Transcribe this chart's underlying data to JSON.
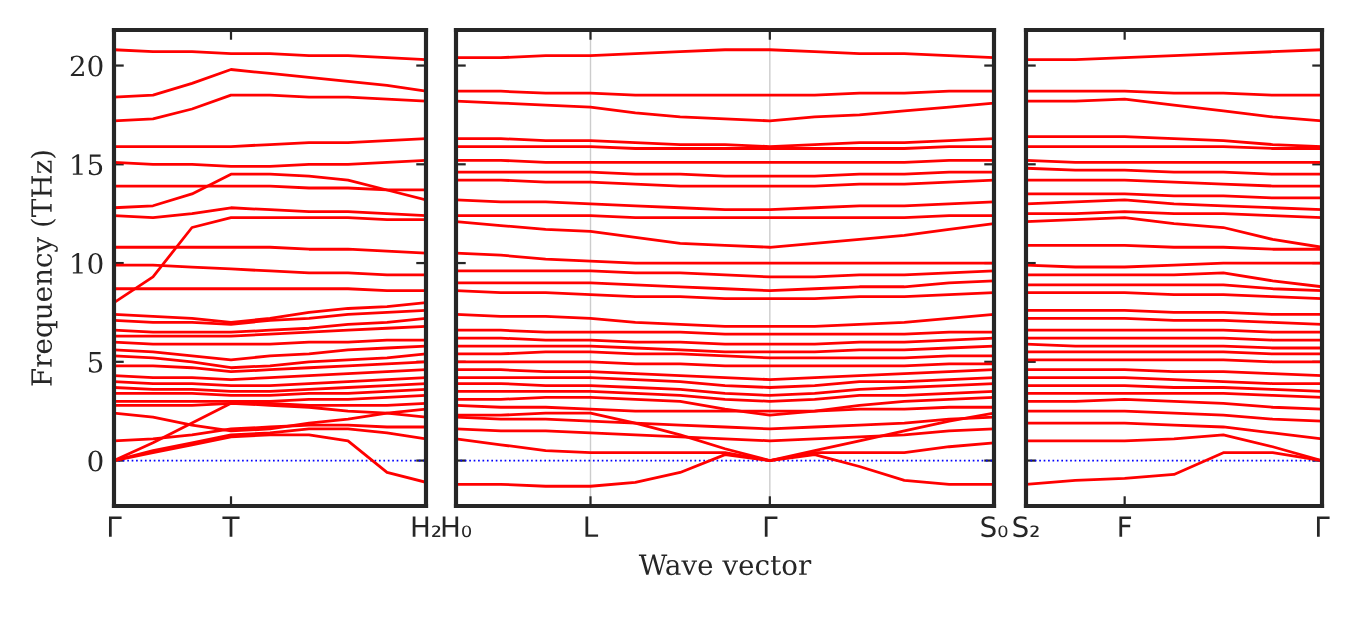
{
  "chart_data": [
    {
      "type": "line",
      "ylabel": "Frequency (THz)",
      "color": "#ff0000",
      "ylim": [
        -2.3,
        21.8
      ],
      "yticks": [
        0,
        5,
        10,
        15,
        20
      ],
      "line_style": "solid",
      "ref_lines": [
        {
          "axis": "y",
          "value": 0,
          "color": "#0000ff",
          "line_style": "dotted"
        }
      ],
      "categories": [
        "Γ",
        null,
        null,
        "T",
        null,
        null,
        null,
        null,
        "H₂"
      ],
      "series": [
        {
          "values": [
            20.8,
            20.7,
            20.7,
            20.6,
            20.6,
            20.5,
            20.5,
            20.4,
            20.3
          ]
        },
        {
          "values": [
            18.4,
            18.5,
            19.1,
            19.8,
            19.6,
            19.4,
            19.2,
            19.0,
            18.7
          ]
        },
        {
          "values": [
            17.2,
            17.3,
            17.8,
            18.5,
            18.5,
            18.4,
            18.4,
            18.3,
            18.2
          ]
        },
        {
          "values": [
            15.9,
            15.9,
            15.9,
            15.9,
            16.0,
            16.1,
            16.1,
            16.2,
            16.3
          ]
        },
        {
          "values": [
            15.1,
            15.0,
            15.0,
            14.9,
            14.9,
            15.0,
            15.0,
            15.1,
            15.2
          ]
        },
        {
          "values": [
            12.8,
            12.9,
            13.5,
            14.5,
            14.5,
            14.4,
            14.2,
            13.7,
            13.2
          ]
        },
        {
          "values": [
            13.9,
            13.9,
            13.9,
            13.9,
            13.9,
            13.8,
            13.8,
            13.7,
            13.7
          ]
        },
        {
          "values": [
            12.4,
            12.3,
            12.5,
            12.8,
            12.7,
            12.6,
            12.6,
            12.5,
            12.4
          ]
        },
        {
          "values": [
            8.0,
            9.3,
            11.8,
            12.3,
            12.3,
            12.3,
            12.3,
            12.2,
            12.2
          ]
        },
        {
          "values": [
            10.8,
            10.8,
            10.8,
            10.8,
            10.8,
            10.7,
            10.7,
            10.6,
            10.5
          ]
        },
        {
          "values": [
            9.9,
            9.9,
            9.8,
            9.7,
            9.6,
            9.5,
            9.5,
            9.4,
            9.4
          ]
        },
        {
          "values": [
            8.7,
            8.7,
            8.7,
            8.7,
            8.7,
            8.7,
            8.7,
            8.6,
            8.6
          ]
        },
        {
          "values": [
            7.4,
            7.3,
            7.2,
            7.0,
            7.2,
            7.5,
            7.7,
            7.8,
            8.0
          ]
        },
        {
          "values": [
            7.1,
            7.0,
            7.0,
            6.9,
            7.1,
            7.2,
            7.4,
            7.5,
            7.6
          ]
        },
        {
          "values": [
            6.6,
            6.5,
            6.5,
            6.5,
            6.6,
            6.7,
            6.9,
            7.0,
            7.2
          ]
        },
        {
          "values": [
            6.3,
            6.3,
            6.3,
            6.3,
            6.4,
            6.5,
            6.6,
            6.7,
            6.8
          ]
        },
        {
          "values": [
            6.0,
            5.9,
            5.9,
            5.9,
            5.9,
            6.0,
            6.0,
            6.1,
            6.1
          ]
        },
        {
          "values": [
            5.6,
            5.5,
            5.3,
            5.1,
            5.3,
            5.4,
            5.6,
            5.7,
            5.8
          ]
        },
        {
          "values": [
            5.3,
            5.2,
            5.0,
            4.7,
            4.8,
            5.0,
            5.1,
            5.2,
            5.4
          ]
        },
        {
          "values": [
            4.8,
            4.8,
            4.7,
            4.5,
            4.6,
            4.7,
            4.8,
            4.9,
            5.0
          ]
        },
        {
          "values": [
            4.3,
            4.2,
            4.2,
            4.1,
            4.2,
            4.3,
            4.4,
            4.5,
            4.6
          ]
        },
        {
          "values": [
            4.0,
            3.9,
            3.9,
            3.8,
            3.8,
            3.9,
            4.0,
            4.1,
            4.2
          ]
        },
        {
          "values": [
            3.7,
            3.6,
            3.6,
            3.5,
            3.5,
            3.6,
            3.7,
            3.8,
            3.9
          ]
        },
        {
          "values": [
            3.4,
            3.4,
            3.4,
            3.3,
            3.3,
            3.4,
            3.4,
            3.5,
            3.6
          ]
        },
        {
          "values": [
            3.0,
            3.0,
            3.0,
            3.0,
            3.0,
            3.1,
            3.1,
            3.2,
            3.3
          ]
        },
        {
          "values": [
            2.8,
            2.8,
            2.8,
            2.9,
            2.9,
            2.8,
            2.8,
            2.8,
            2.9
          ]
        },
        {
          "values": [
            2.4,
            2.2,
            1.8,
            1.5,
            1.6,
            1.9,
            2.1,
            2.4,
            2.6
          ]
        },
        {
          "values": [
            0.0,
            0.9,
            1.9,
            2.9,
            2.8,
            2.7,
            2.5,
            2.4,
            2.2
          ]
        },
        {
          "values": [
            1.0,
            1.1,
            1.3,
            1.6,
            1.7,
            1.8,
            1.8,
            1.7,
            1.7
          ]
        },
        {
          "values": [
            0.0,
            0.5,
            0.9,
            1.3,
            1.4,
            1.6,
            1.6,
            1.4,
            1.1
          ]
        },
        {
          "values": [
            0.0,
            0.4,
            0.8,
            1.2,
            1.3,
            1.3,
            1.0,
            -0.6,
            -1.1
          ]
        }
      ]
    },
    {
      "type": "line",
      "xlabel": "Wave vector",
      "color": "#ff0000",
      "ylim": [
        -2.3,
        21.8
      ],
      "yticks": [
        0,
        5,
        10,
        15,
        20
      ],
      "grid": "x",
      "line_style": "solid",
      "ref_lines": [
        {
          "axis": "y",
          "value": 0,
          "color": "#0000ff",
          "line_style": "dotted"
        }
      ],
      "categories": [
        "H₀",
        null,
        null,
        "L",
        null,
        null,
        null,
        "Γ",
        null,
        null,
        null,
        null,
        "S₀"
      ],
      "series": [
        {
          "values": [
            20.4,
            20.4,
            20.5,
            20.5,
            20.6,
            20.7,
            20.8,
            20.8,
            20.7,
            20.6,
            20.6,
            20.5,
            20.4
          ]
        },
        {
          "values": [
            18.7,
            18.7,
            18.6,
            18.6,
            18.5,
            18.5,
            18.5,
            18.5,
            18.5,
            18.6,
            18.6,
            18.7,
            18.7
          ]
        },
        {
          "values": [
            18.2,
            18.1,
            18.0,
            17.9,
            17.6,
            17.4,
            17.3,
            17.2,
            17.4,
            17.5,
            17.7,
            17.9,
            18.1
          ]
        },
        {
          "values": [
            16.3,
            16.3,
            16.2,
            16.2,
            16.1,
            16.0,
            16.0,
            15.9,
            16.0,
            16.1,
            16.1,
            16.2,
            16.3
          ]
        },
        {
          "values": [
            15.9,
            15.9,
            15.9,
            15.9,
            15.8,
            15.8,
            15.8,
            15.8,
            15.8,
            15.8,
            15.8,
            15.9,
            15.9
          ]
        },
        {
          "values": [
            15.2,
            15.2,
            15.1,
            15.1,
            15.1,
            15.1,
            15.1,
            15.1,
            15.1,
            15.1,
            15.1,
            15.2,
            15.2
          ]
        },
        {
          "values": [
            14.6,
            14.6,
            14.6,
            14.6,
            14.5,
            14.5,
            14.4,
            14.4,
            14.4,
            14.5,
            14.5,
            14.6,
            14.6
          ]
        },
        {
          "values": [
            14.2,
            14.2,
            14.1,
            14.1,
            14.0,
            13.9,
            13.9,
            13.9,
            13.9,
            14.0,
            14.0,
            14.1,
            14.2
          ]
        },
        {
          "values": [
            13.2,
            13.1,
            13.1,
            13.0,
            12.9,
            12.8,
            12.7,
            12.7,
            12.8,
            12.9,
            12.9,
            13.0,
            13.1
          ]
        },
        {
          "values": [
            12.4,
            12.4,
            12.4,
            12.4,
            12.3,
            12.3,
            12.3,
            12.3,
            12.3,
            12.3,
            12.3,
            12.4,
            12.4
          ]
        },
        {
          "values": [
            12.1,
            11.9,
            11.7,
            11.6,
            11.3,
            11.0,
            10.9,
            10.8,
            11.0,
            11.2,
            11.4,
            11.7,
            12.0
          ]
        },
        {
          "values": [
            10.5,
            10.4,
            10.2,
            10.1,
            10.0,
            10.0,
            10.0,
            10.0,
            10.0,
            10.0,
            10.0,
            10.0,
            10.0
          ]
        },
        {
          "values": [
            9.6,
            9.6,
            9.6,
            9.6,
            9.5,
            9.5,
            9.4,
            9.3,
            9.3,
            9.4,
            9.4,
            9.5,
            9.6
          ]
        },
        {
          "values": [
            9.0,
            9.0,
            9.0,
            9.0,
            8.9,
            8.8,
            8.7,
            8.6,
            8.7,
            8.8,
            8.8,
            9.0,
            9.1
          ]
        },
        {
          "values": [
            8.6,
            8.5,
            8.5,
            8.4,
            8.3,
            8.3,
            8.2,
            8.2,
            8.2,
            8.3,
            8.3,
            8.4,
            8.5
          ]
        },
        {
          "values": [
            7.4,
            7.3,
            7.3,
            7.2,
            7.0,
            6.9,
            6.8,
            6.8,
            6.8,
            6.9,
            7.0,
            7.2,
            7.4
          ]
        },
        {
          "values": [
            6.6,
            6.6,
            6.5,
            6.5,
            6.5,
            6.5,
            6.4,
            6.4,
            6.4,
            6.4,
            6.4,
            6.5,
            6.5
          ]
        },
        {
          "values": [
            6.2,
            6.2,
            6.1,
            6.1,
            6.0,
            6.0,
            5.9,
            5.9,
            5.9,
            6.0,
            6.0,
            6.1,
            6.2
          ]
        },
        {
          "values": [
            5.8,
            5.8,
            5.8,
            5.8,
            5.7,
            5.6,
            5.5,
            5.5,
            5.5,
            5.6,
            5.6,
            5.7,
            5.8
          ]
        },
        {
          "values": [
            5.4,
            5.4,
            5.5,
            5.5,
            5.4,
            5.4,
            5.3,
            5.2,
            5.2,
            5.2,
            5.2,
            5.3,
            5.3
          ]
        },
        {
          "values": [
            5.0,
            5.0,
            5.0,
            5.0,
            4.9,
            4.9,
            4.8,
            4.8,
            4.8,
            4.8,
            4.8,
            4.9,
            4.9
          ]
        },
        {
          "values": [
            4.6,
            4.6,
            4.5,
            4.5,
            4.4,
            4.3,
            4.2,
            4.1,
            4.2,
            4.3,
            4.4,
            4.5,
            4.6
          ]
        },
        {
          "values": [
            4.2,
            4.2,
            4.2,
            4.2,
            4.1,
            4.0,
            3.8,
            3.7,
            3.8,
            4.0,
            4.0,
            4.1,
            4.2
          ]
        },
        {
          "values": [
            3.9,
            3.9,
            3.8,
            3.8,
            3.7,
            3.6,
            3.4,
            3.3,
            3.4,
            3.6,
            3.7,
            3.8,
            3.9
          ]
        },
        {
          "values": [
            3.5,
            3.5,
            3.5,
            3.5,
            3.4,
            3.3,
            3.1,
            3.0,
            3.1,
            3.3,
            3.3,
            3.4,
            3.5
          ]
        },
        {
          "values": [
            3.1,
            3.1,
            3.2,
            3.2,
            3.1,
            3.0,
            2.6,
            2.3,
            2.5,
            2.8,
            3.0,
            3.1,
            3.2
          ]
        },
        {
          "values": [
            2.8,
            2.7,
            2.7,
            2.6,
            2.5,
            2.5,
            2.5,
            2.5,
            2.5,
            2.6,
            2.6,
            2.7,
            2.7
          ]
        },
        {
          "values": [
            2.2,
            2.1,
            2.1,
            2.0,
            1.9,
            1.8,
            1.7,
            1.6,
            1.7,
            1.8,
            1.9,
            2.1,
            2.2
          ]
        },
        {
          "values": [
            1.6,
            1.5,
            1.5,
            1.4,
            1.3,
            1.2,
            1.1,
            1.0,
            1.1,
            1.2,
            1.3,
            1.5,
            1.6
          ]
        },
        {
          "values": [
            2.3,
            2.3,
            2.4,
            2.4,
            1.9,
            1.3,
            0.6,
            0.0,
            0.4,
            0.4,
            0.4,
            0.7,
            0.9
          ]
        },
        {
          "values": [
            1.1,
            0.8,
            0.5,
            0.4,
            0.4,
            0.4,
            0.4,
            0.0,
            0.5,
            1.0,
            1.5,
            2.0,
            2.4
          ]
        },
        {
          "values": [
            -1.2,
            -1.2,
            -1.3,
            -1.3,
            -1.1,
            -0.6,
            0.3,
            0.0,
            0.3,
            -0.3,
            -1.0,
            -1.2,
            -1.2
          ]
        }
      ],
      "tick_labels": "x"
    },
    {
      "type": "line",
      "color": "#ff0000",
      "ylim": [
        -2.3,
        21.8
      ],
      "yticks": [
        0,
        5,
        10,
        15,
        20
      ],
      "line_style": "solid",
      "ref_lines": [
        {
          "axis": "y",
          "value": 0,
          "color": "#0000ff",
          "line_style": "dotted"
        }
      ],
      "categories": [
        "S₂",
        null,
        "F",
        null,
        null,
        null,
        "Γ"
      ],
      "series": [
        {
          "values": [
            20.3,
            20.3,
            20.4,
            20.5,
            20.6,
            20.7,
            20.8
          ]
        },
        {
          "values": [
            18.7,
            18.7,
            18.7,
            18.6,
            18.6,
            18.5,
            18.5
          ]
        },
        {
          "values": [
            18.2,
            18.2,
            18.3,
            18.0,
            17.7,
            17.4,
            17.2
          ]
        },
        {
          "values": [
            16.4,
            16.4,
            16.4,
            16.3,
            16.2,
            16.0,
            15.9
          ]
        },
        {
          "values": [
            15.9,
            15.9,
            15.9,
            15.9,
            15.9,
            15.8,
            15.8
          ]
        },
        {
          "values": [
            15.2,
            15.1,
            15.1,
            15.1,
            15.1,
            15.1,
            15.1
          ]
        },
        {
          "values": [
            14.8,
            14.7,
            14.7,
            14.6,
            14.6,
            14.5,
            14.5
          ]
        },
        {
          "values": [
            14.2,
            14.2,
            14.2,
            14.1,
            14.0,
            13.9,
            13.9
          ]
        },
        {
          "values": [
            13.5,
            13.5,
            13.5,
            13.4,
            13.4,
            13.3,
            13.3
          ]
        },
        {
          "values": [
            13.0,
            13.1,
            13.2,
            13.0,
            12.9,
            12.8,
            12.7
          ]
        },
        {
          "values": [
            12.5,
            12.5,
            12.6,
            12.5,
            12.5,
            12.4,
            12.3
          ]
        },
        {
          "values": [
            12.1,
            12.2,
            12.3,
            12.0,
            11.8,
            11.2,
            10.8
          ]
        },
        {
          "values": [
            10.9,
            10.9,
            10.9,
            10.8,
            10.8,
            10.7,
            10.7
          ]
        },
        {
          "values": [
            9.9,
            9.8,
            9.8,
            9.9,
            10.0,
            10.0,
            10.0
          ]
        },
        {
          "values": [
            9.4,
            9.4,
            9.4,
            9.4,
            9.5,
            9.1,
            8.8
          ]
        },
        {
          "values": [
            8.9,
            8.9,
            8.9,
            8.9,
            8.9,
            8.7,
            8.6
          ]
        },
        {
          "values": [
            8.5,
            8.5,
            8.5,
            8.4,
            8.4,
            8.3,
            8.2
          ]
        },
        {
          "values": [
            7.6,
            7.6,
            7.6,
            7.5,
            7.5,
            7.4,
            7.4
          ]
        },
        {
          "values": [
            7.2,
            7.2,
            7.2,
            7.1,
            7.1,
            7.0,
            6.9
          ]
        },
        {
          "values": [
            6.6,
            6.6,
            6.6,
            6.6,
            6.6,
            6.5,
            6.5
          ]
        },
        {
          "values": [
            6.2,
            6.2,
            6.2,
            6.2,
            6.2,
            6.1,
            6.1
          ]
        },
        {
          "values": [
            5.9,
            5.8,
            5.8,
            5.8,
            5.8,
            5.7,
            5.7
          ]
        },
        {
          "values": [
            5.5,
            5.5,
            5.5,
            5.5,
            5.5,
            5.4,
            5.4
          ]
        },
        {
          "values": [
            5.1,
            5.1,
            5.1,
            5.1,
            5.1,
            5.0,
            5.0
          ]
        },
        {
          "values": [
            4.6,
            4.6,
            4.6,
            4.5,
            4.5,
            4.4,
            4.3
          ]
        },
        {
          "values": [
            4.2,
            4.2,
            4.2,
            4.1,
            4.0,
            3.9,
            3.9
          ]
        },
        {
          "values": [
            3.8,
            3.8,
            3.8,
            3.7,
            3.7,
            3.6,
            3.5
          ]
        },
        {
          "values": [
            3.4,
            3.4,
            3.4,
            3.4,
            3.4,
            3.3,
            3.2
          ]
        },
        {
          "values": [
            3.0,
            3.0,
            3.1,
            3.0,
            2.9,
            2.7,
            2.6
          ]
        },
        {
          "values": [
            2.5,
            2.5,
            2.5,
            2.4,
            2.3,
            2.1,
            2.0
          ]
        },
        {
          "values": [
            1.9,
            1.9,
            1.9,
            1.8,
            1.7,
            1.4,
            1.1
          ]
        },
        {
          "values": [
            1.0,
            1.0,
            1.0,
            1.1,
            1.3,
            0.7,
            0.0
          ]
        },
        {
          "values": [
            -1.2,
            -1.0,
            -0.9,
            -0.7,
            0.4,
            0.4,
            0.0
          ]
        }
      ],
      "tick_labels": "x"
    }
  ]
}
